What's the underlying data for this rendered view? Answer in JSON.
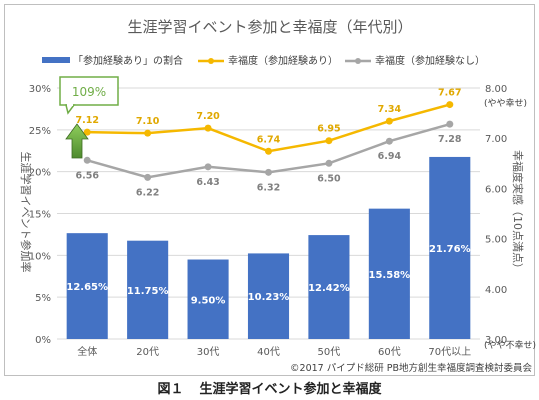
{
  "chart_data": {
    "type": "bar",
    "title": "生涯学習イベント参加と幸福度（年代別）",
    "categories": [
      "全体",
      "20代",
      "30代",
      "40代",
      "50代",
      "60代",
      "70代以上"
    ],
    "series": [
      {
        "name": "「参加経験あり」の割合",
        "type": "bar",
        "axis": "left",
        "color": "#4472c4",
        "values": [
          12.65,
          11.75,
          9.5,
          10.23,
          12.42,
          15.58,
          21.76
        ],
        "labels": [
          "12.65%",
          "11.75%",
          "9.50%",
          "10.23%",
          "12.42%",
          "15.58%",
          "21.76%"
        ]
      },
      {
        "name": "幸福度（参加経験あり）",
        "type": "line",
        "axis": "right",
        "color": "#f5b800",
        "values": [
          7.12,
          7.1,
          7.2,
          6.74,
          6.95,
          7.34,
          7.67
        ],
        "labels": [
          "7.12",
          "7.10",
          "7.20",
          "6.74",
          "6.95",
          "7.34",
          "7.67"
        ]
      },
      {
        "name": "幸福度（参加経験なし）",
        "type": "line",
        "axis": "right",
        "color": "#a6a6a6",
        "values": [
          6.56,
          6.22,
          6.43,
          6.32,
          6.5,
          6.94,
          7.28
        ],
        "labels": [
          "6.56",
          "6.22",
          "6.43",
          "6.32",
          "6.50",
          "6.94",
          "7.28"
        ]
      }
    ],
    "y_left": {
      "label": "生涯学習イベント参加率",
      "range": [
        0,
        30
      ],
      "ticks": [
        "0%",
        "5%",
        "10%",
        "15%",
        "20%",
        "25%",
        "30%"
      ]
    },
    "y_right": {
      "label": "幸福度実感（10点満点）",
      "range": [
        3,
        8
      ],
      "ticks": [
        "3.00",
        "4.00",
        "5.00",
        "6.00",
        "7.00",
        "8.00"
      ],
      "top_note": "(やや幸せ)",
      "bottom_note": "(やや不幸せ)"
    },
    "callout": {
      "text": "109%",
      "arrow_color": "#70ad47"
    },
    "grid": true,
    "legend": "top",
    "copyright": "©2017 パイプド総研 PB地方創生幸福度調査検討委員会"
  },
  "caption": {
    "figure_no": "図１",
    "text": "生涯学習イベント参加と幸福度"
  }
}
